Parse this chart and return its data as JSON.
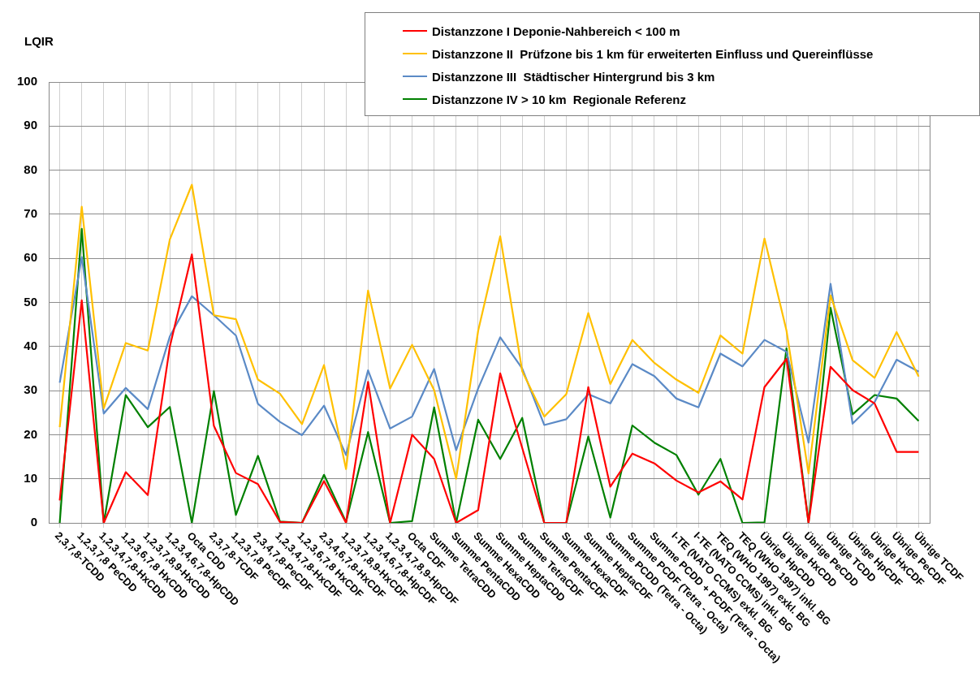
{
  "chart_data": {
    "type": "line",
    "ylabel": "LQIR",
    "categories": [
      "2,3,7,8-TCDD",
      "1,2,3,7,8 PeCDD",
      "1,2,3,4,7,8-HxCDD",
      "1,2,3,6,7,8 HxCDD",
      "1,2,3,7,8,9-HxCDD",
      "1,2,3,4,6,7,8-HpCDD",
      "Octa CDD",
      "2,3,7,8-TCDF",
      "1,2,3,7,8 PeCDF",
      "2,3,4,7,8-PeCDF",
      "1,2,3,4,7,8-HxCDF",
      "1,2,3,6,7,8 HxCDF",
      "2,3,4,6,7,8-HxCDF",
      "1,2,3,7,8,9-HxCDF",
      "1,2,3,4,6,7,8-HpCDF",
      "1,2,3,4,7,8,9-HpCDF",
      "Octa CDF",
      "Summe TetraCDD",
      "Summe PentaCDD",
      "Summe HexaCDD",
      "Summe HeptaCDD",
      "Summe TetraCDF",
      "Summe PentaCDF",
      "Summe HexaCDF",
      "Summe HeptaCDF",
      "Summe PCDD (Tetra - Octa)",
      "Summe PCDF (Tetra - Octa)",
      "Summe PCDD + PCDF (Tetra - Octa)",
      "I-TE (NATO CCMS) exkl. BG",
      "I-TE (NATO CCMS) inkl. BG",
      "TEQ (WHO 1997) exkl. BG",
      "TEQ (WHO 1997) inkl. BG",
      "Übrige HpCDD",
      "Übrige HxCDD",
      "Übrige PeCDD",
      "Übrige TCDD",
      "Übrige HpCDF",
      "Übrige HxCDF",
      "Übrige PeCDF",
      "Übrige TCDF"
    ],
    "series": [
      {
        "name": "Distanzzone I Deponie-Nahbereich < 100 m",
        "color": "#ff0000",
        "values": [
          5.1,
          50.5,
          0,
          11.5,
          6.3,
          40,
          60.9,
          22,
          11.3,
          8.8,
          0.2,
          0,
          9.5,
          0,
          32,
          0,
          20,
          14.5,
          0,
          2.9,
          33.9,
          17,
          0,
          0,
          30.8,
          8.2,
          15.7,
          13.5,
          9.6,
          6.9,
          9.4,
          5.3,
          30.8,
          37.2,
          0,
          35.4,
          30.1,
          27.1,
          16.1,
          16.1
        ]
      },
      {
        "name": "Distanzzone II  Prüfzone bis 1 km für erweiterten Einfluss und Quereinflüsse",
        "color": "#ffc000",
        "values": [
          21.7,
          71.7,
          26,
          40.8,
          39.1,
          64.3,
          76.7,
          47.1,
          46.2,
          32.5,
          29.3,
          22.4,
          35.8,
          12.2,
          52.7,
          30.5,
          40.4,
          30.1,
          10,
          43.6,
          65,
          34.4,
          24.1,
          29.2,
          47.6,
          31.5,
          41.5,
          36.3,
          32.5,
          29.5,
          42.5,
          38.4,
          64.5,
          43.6,
          11.2,
          51.6,
          36.9,
          32.9,
          43.3,
          33.2
        ]
      },
      {
        "name": "Distanzzone III  Städtischer Hintergrund bis 3 km",
        "color": "#5b8ac6",
        "values": [
          31.8,
          60.3,
          24.8,
          30.6,
          25.8,
          42.3,
          51.4,
          47.1,
          42.5,
          27,
          22.9,
          19.9,
          26.6,
          15.4,
          34.6,
          21.4,
          24.1,
          34.9,
          16.5,
          30.5,
          42.1,
          35,
          22.2,
          23.5,
          29.2,
          27.1,
          36,
          33.3,
          28.2,
          26.2,
          38.4,
          35.5,
          41.5,
          38.8,
          18.2,
          54.2,
          22.5,
          27.4,
          37,
          34.3
        ]
      },
      {
        "name": "Distanzzone IV > 10 km  Regionale Referenz",
        "color": "#008000",
        "values": [
          0,
          66.7,
          0,
          29,
          21.7,
          26.3,
          0,
          29.9,
          1.8,
          15.2,
          0.3,
          0,
          10.9,
          0.2,
          20.6,
          0,
          0.4,
          26.2,
          0,
          23.4,
          14.5,
          23.8,
          0,
          0,
          19.6,
          1.2,
          22.1,
          18.2,
          15.4,
          6.4,
          14.5,
          0,
          0.1,
          39.6,
          0,
          48.8,
          24.6,
          29,
          28.2,
          23.1
        ]
      }
    ],
    "ylim": [
      0,
      100
    ],
    "yticks": [
      0,
      10,
      20,
      30,
      40,
      50,
      60,
      70,
      80,
      90,
      100
    ],
    "grid": true,
    "legend": "top right",
    "marker": "none",
    "line_style": "solid"
  }
}
